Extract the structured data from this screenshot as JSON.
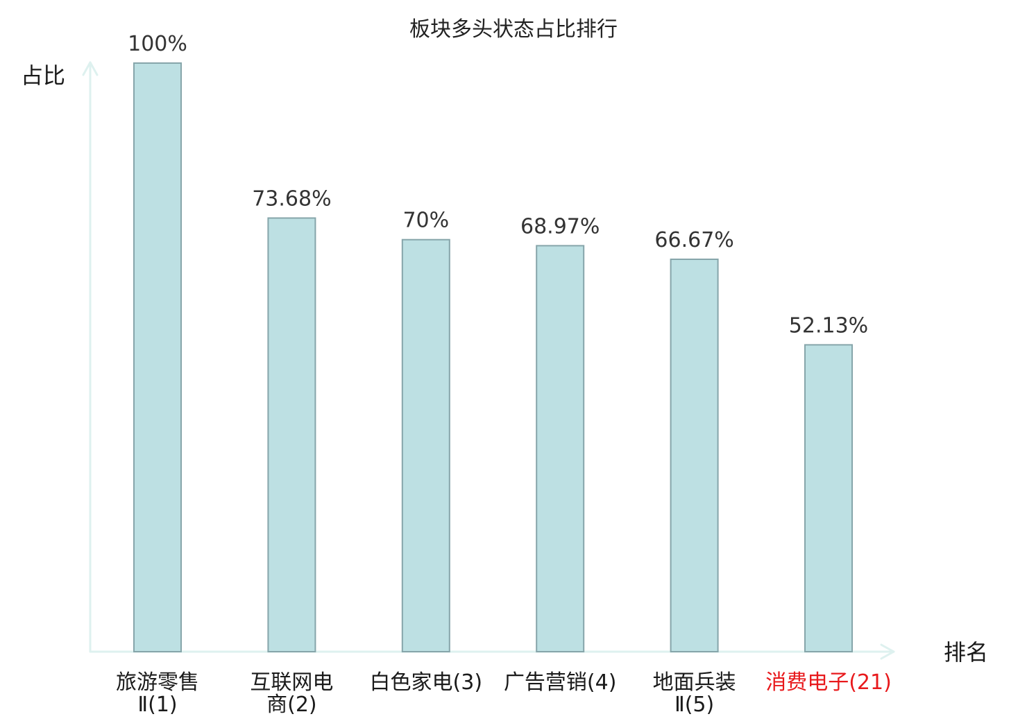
{
  "chart_data": {
    "type": "bar",
    "title": "板块多头状态占比排行",
    "ylabel": "占比",
    "xlabel": "排名",
    "ylim": [
      0,
      100
    ],
    "grid": false,
    "legend": "none",
    "categories": [
      [
        "旅游零售",
        "Ⅱ(1)"
      ],
      [
        "互联网电",
        "商(2)"
      ],
      [
        "白色家电(3)"
      ],
      [
        "广告营销(4)"
      ],
      [
        "地面兵装",
        "Ⅱ(5)"
      ],
      [
        "消费电子(21)"
      ]
    ],
    "values": [
      100,
      73.68,
      70,
      68.97,
      66.67,
      52.13
    ],
    "value_labels": [
      "100%",
      "73.68%",
      "70%",
      "68.97%",
      "66.67%",
      "52.13%"
    ],
    "highlight_index": 5
  },
  "colors": {
    "bar_fill": "#bde0e3",
    "bar_stroke": "#86a5aa",
    "axis": "#def1ef",
    "label_text": "#1a1a1a",
    "highlight_text": "#e8191c"
  }
}
